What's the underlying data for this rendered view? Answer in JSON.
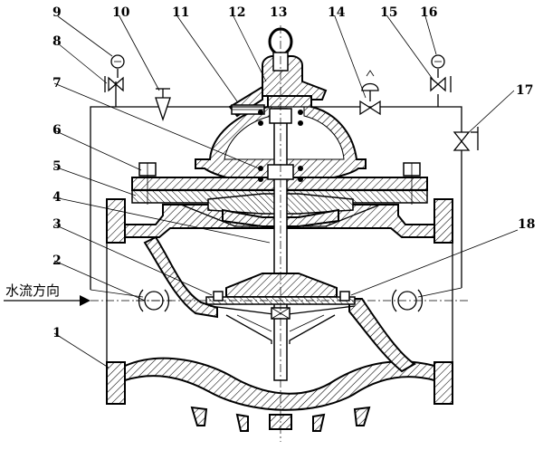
{
  "diagram": {
    "flow_label": "水流方向",
    "callouts": [
      {
        "id": "1",
        "label": "1"
      },
      {
        "id": "2",
        "label": "2"
      },
      {
        "id": "3",
        "label": "3"
      },
      {
        "id": "4",
        "label": "4"
      },
      {
        "id": "5",
        "label": "5"
      },
      {
        "id": "6",
        "label": "6"
      },
      {
        "id": "7",
        "label": "7"
      },
      {
        "id": "8",
        "label": "8"
      },
      {
        "id": "9",
        "label": "9"
      },
      {
        "id": "10",
        "label": "10"
      },
      {
        "id": "11",
        "label": "11"
      },
      {
        "id": "12",
        "label": "12"
      },
      {
        "id": "13",
        "label": "13"
      },
      {
        "id": "14",
        "label": "14"
      },
      {
        "id": "15",
        "label": "15"
      },
      {
        "id": "16",
        "label": "16"
      },
      {
        "id": "17",
        "label": "17"
      },
      {
        "id": "18",
        "label": "18"
      }
    ]
  }
}
